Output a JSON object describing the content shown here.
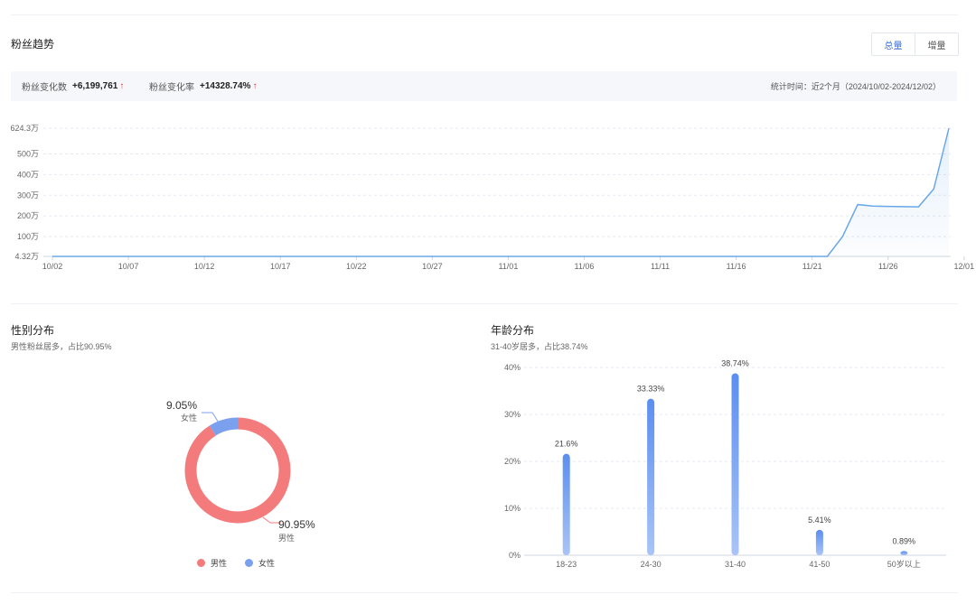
{
  "trend": {
    "title": "粉丝趋势",
    "toggle": {
      "total": "总量",
      "increment": "增量"
    },
    "stats": {
      "change_count_label": "粉丝变化数",
      "change_count_value": "+6,199,761",
      "change_rate_label": "粉丝变化率",
      "change_rate_value": "+14328.74%",
      "up_arrow": "↑",
      "time_label": "统计时间：近2个月（2024/10/02-2024/12/02）"
    }
  },
  "chart_data": [
    {
      "type": "area",
      "x": [
        "10/02",
        "10/07",
        "10/12",
        "10/17",
        "10/22",
        "10/27",
        "11/01",
        "11/06",
        "11/11",
        "11/16",
        "11/21",
        "11/26",
        "12/01"
      ],
      "y_ticks": [
        "4.32万",
        "100万",
        "200万",
        "300万",
        "400万",
        "500万",
        "624.3万"
      ],
      "y_tick_values": [
        4.32,
        100,
        200,
        300,
        400,
        500,
        624.3
      ],
      "ylim": [
        4.32,
        624.3
      ],
      "series": [
        {
          "points": [
            [
              0,
              4.32
            ],
            [
              51,
              4.32
            ],
            [
              52,
              100
            ],
            [
              53,
              255
            ],
            [
              54,
              248
            ],
            [
              55,
              246
            ],
            [
              56,
              245
            ],
            [
              57,
              244
            ],
            [
              58,
              330
            ],
            [
              59,
              624.3
            ]
          ]
        }
      ],
      "x_count": 60,
      "grid": true,
      "color": "#6aa7e8"
    },
    {
      "type": "pie",
      "title": "性别分布",
      "subtitle": "男性粉丝居多，占比90.95%",
      "slices": [
        {
          "name": "男性",
          "value": 90.95,
          "label": "90.95%",
          "color": "#f47b7b"
        },
        {
          "name": "女性",
          "value": 9.05,
          "label": "9.05%",
          "color": "#7aa0ee"
        }
      ]
    },
    {
      "type": "bar",
      "title": "年龄分布",
      "subtitle": "31-40岁居多，占比38.74%",
      "categories": [
        "18-23",
        "24-30",
        "31-40",
        "41-50",
        "50岁以上"
      ],
      "values": [
        21.6,
        33.33,
        38.74,
        5.41,
        0.89
      ],
      "value_labels": [
        "21.6%",
        "33.33%",
        "38.74%",
        "5.41%",
        "0.89%"
      ],
      "y_ticks": [
        "0%",
        "10%",
        "20%",
        "30%",
        "40%"
      ],
      "ylim": [
        0,
        40
      ],
      "grid": true,
      "color": "#5b8ef0"
    }
  ]
}
